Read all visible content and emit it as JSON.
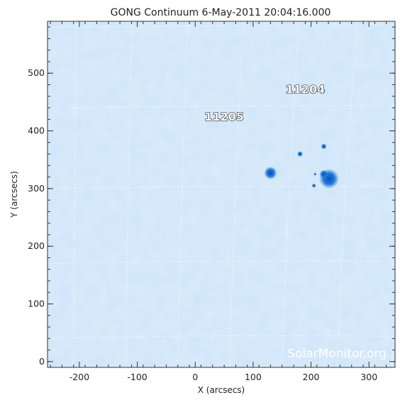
{
  "chart_data": {
    "type": "scatter",
    "title": "GONG Continuum   6-May-2011 20:04:16.000",
    "xlabel": "X (arcsecs)",
    "ylabel": "Y (arcsecs)",
    "xlim": [
      -255,
      345
    ],
    "ylim": [
      -10,
      590
    ],
    "x_ticks": [
      -200,
      -100,
      0,
      100,
      200,
      300
    ],
    "y_ticks": [
      0,
      100,
      200,
      300,
      400,
      500
    ],
    "grid": true,
    "background_color": "#cfe6f9",
    "sunspot_color": "#1e78d8",
    "regions": [
      {
        "name": "11204",
        "x": 190,
        "y": 465
      },
      {
        "name": "11205",
        "x": 50,
        "y": 418
      }
    ],
    "sunspots": [
      {
        "x": 231,
        "y": 317,
        "size": 14
      },
      {
        "x": 222,
        "y": 325,
        "size": 6
      },
      {
        "x": 130,
        "y": 327,
        "size": 9
      },
      {
        "x": 181,
        "y": 360,
        "size": 4
      },
      {
        "x": 222,
        "y": 373,
        "size": 4
      },
      {
        "x": 205,
        "y": 305,
        "size": 3
      },
      {
        "x": 207,
        "y": 325,
        "size": 2
      }
    ],
    "watermark": "SolarMonitor.org"
  }
}
